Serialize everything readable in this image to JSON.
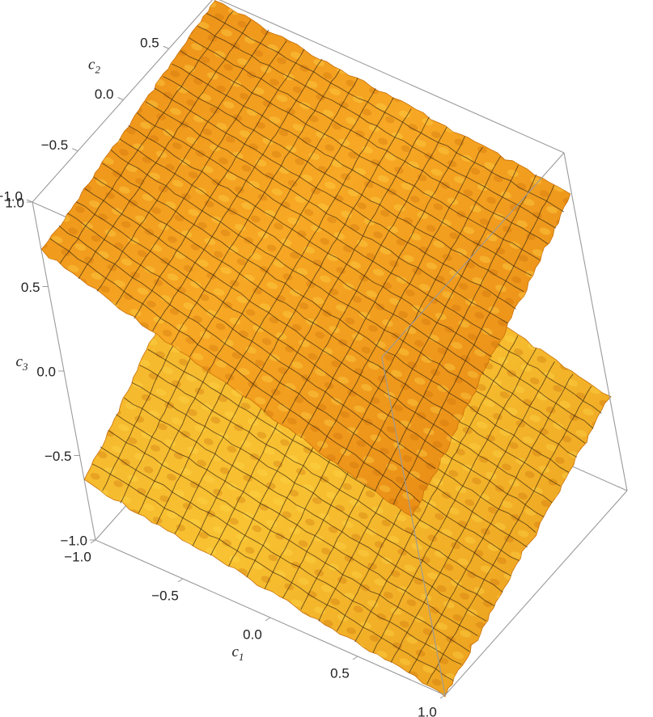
{
  "chart_data": {
    "type": "surface3d",
    "title": "",
    "axes": {
      "x": {
        "label": "c",
        "subscript": "1",
        "range": [
          -1.0,
          1.0
        ],
        "ticks": [
          -1.0,
          -0.5,
          0.0,
          0.5,
          1.0
        ],
        "tick_labels": [
          "−1.0",
          "−0.5",
          "0.0",
          "0.5",
          "1.0"
        ]
      },
      "y": {
        "label": "c",
        "subscript": "2",
        "range": [
          -1.0,
          1.0
        ],
        "ticks": [
          -1.0,
          -0.5,
          0.0,
          0.5,
          1.0
        ],
        "tick_labels": [
          "−1.0",
          "−0.5",
          "0.0",
          "0.5",
          "1.0"
        ]
      },
      "z": {
        "label": "c",
        "subscript": "3",
        "range": [
          -1.0,
          1.0
        ],
        "ticks": [
          -1.0,
          -0.5,
          0.0,
          0.5,
          1.0
        ],
        "tick_labels": [
          "−1.0",
          "−0.5",
          "0.0",
          "0.5",
          "1.0"
        ]
      }
    },
    "surfaces": [
      {
        "corners": {
          "x-1y-1": 0.71,
          "x1y-1": 0.05,
          "x1y1": 0.75,
          "x-1y1": 0.98
        }
      },
      {
        "corners": {
          "x-1y-1": -0.65,
          "x1y-1": -1.0,
          "x1y1": -0.45,
          "x-1y1": 0.1
        }
      }
    ],
    "surface_color": "#f5a623",
    "surface_highlight": "#ffd23a",
    "surface_shadow": "#c96f08",
    "mesh_color": "#3a2a10",
    "box": true,
    "grid": false,
    "legend": "none"
  }
}
